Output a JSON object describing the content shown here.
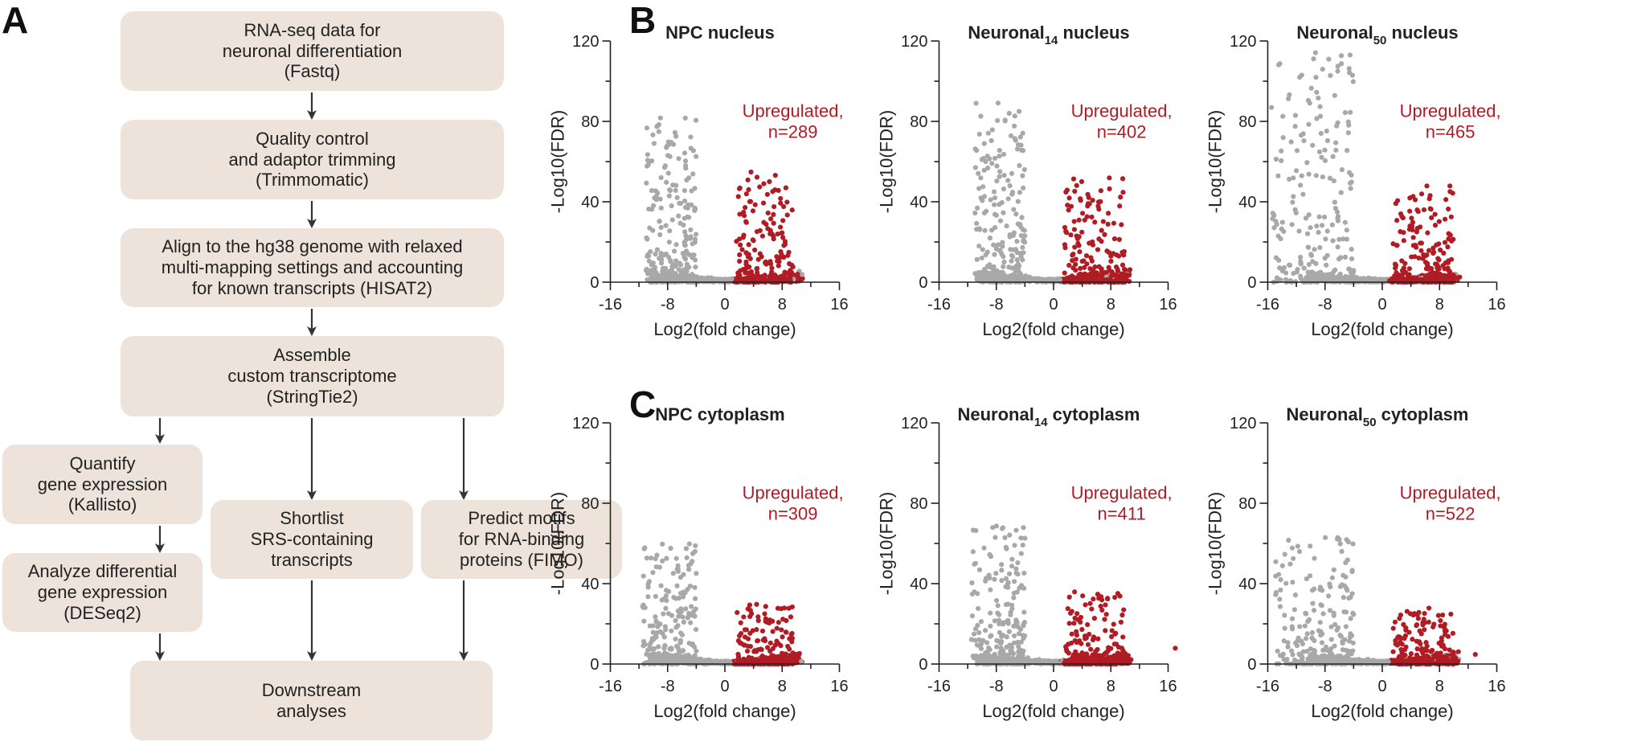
{
  "panels": {
    "a": "A",
    "b": "B",
    "c": "C"
  },
  "flowchart": {
    "box1": [
      "RNA-seq data for",
      "neuronal differentiation",
      "(Fastq)"
    ],
    "box2": [
      "Quality control",
      "and adaptor trimming",
      "(Trimmomatic)"
    ],
    "box3": [
      "Align to the hg38 genome with relaxed",
      "multi-mapping settings and accounting",
      "for known transcripts (HISAT2)"
    ],
    "box4": [
      "Assemble",
      "custom transcriptome",
      "(StringTie2)"
    ],
    "box5": [
      "Quantify",
      "gene expression",
      "(Kallisto)"
    ],
    "box6": [
      "Analyze differential",
      "gene expression",
      "(DESeq2)"
    ],
    "box7": [
      "Shortlist",
      "SRS-containing",
      "transcripts"
    ],
    "box8": [
      "Predict motifs",
      "for RNA-binding",
      "proteins (FIMO)"
    ],
    "box9": [
      "Downstream",
      "analyses"
    ]
  },
  "colors": {
    "box_fill": "#ede3da",
    "upregulated": "#b01c24",
    "other_points": "#a8a8a8",
    "text": "#222222"
  },
  "axes": {
    "xlabel": "Log2(fold change)",
    "ylabel": "-Log10(FDR)"
  },
  "chart_data": [
    {
      "type": "scatter",
      "panel": "B",
      "title_main": "NPC nucleus",
      "title_sub": "",
      "title_suffix": "",
      "annotation": [
        "Upregulated,",
        "n=289"
      ],
      "up_count": 289,
      "xlim": [
        -16,
        16
      ],
      "ylim": [
        0,
        120
      ],
      "xticks": [
        -16,
        -8,
        0,
        8,
        16
      ],
      "yticks": [
        0,
        40,
        80,
        120
      ],
      "xlabel": "Log2(fold change)",
      "ylabel": "-Log10(FDR)",
      "seed": 11,
      "maxY": 82,
      "upMaxY": 55,
      "maxX": 9.5,
      "minX": -11
    },
    {
      "type": "scatter",
      "panel": "B",
      "title_main": "Neuronal",
      "title_sub": "14",
      "title_suffix": " nucleus",
      "annotation": [
        "Upregulated,",
        "n=402"
      ],
      "up_count": 402,
      "xlim": [
        -16,
        16
      ],
      "ylim": [
        0,
        120
      ],
      "xticks": [
        -16,
        -8,
        0,
        8,
        16
      ],
      "yticks": [
        0,
        40,
        80,
        120
      ],
      "xlabel": "Log2(fold change)",
      "ylabel": "-Log10(FDR)",
      "seed": 23,
      "maxY": 90,
      "upMaxY": 52,
      "maxX": 10,
      "minX": -11
    },
    {
      "type": "scatter",
      "panel": "B",
      "title_main": "Neuronal",
      "title_sub": "50",
      "title_suffix": " nucleus",
      "annotation": [
        "Upregulated,",
        "n=465"
      ],
      "up_count": 465,
      "xlim": [
        -16,
        16
      ],
      "ylim": [
        0,
        120
      ],
      "xticks": [
        -16,
        -8,
        0,
        8,
        16
      ],
      "yticks": [
        0,
        40,
        80,
        120
      ],
      "xlabel": "Log2(fold change)",
      "ylabel": "-Log10(FDR)",
      "seed": 37,
      "maxY": 116,
      "upMaxY": 49,
      "maxX": 10,
      "minX": -15.5
    },
    {
      "type": "scatter",
      "panel": "C",
      "title_main": "NPC cytoplasm",
      "title_sub": "",
      "title_suffix": "",
      "annotation": [
        "Upregulated,",
        "n=309"
      ],
      "up_count": 309,
      "xlim": [
        -16,
        16
      ],
      "ylim": [
        0,
        120
      ],
      "xticks": [
        -16,
        -8,
        0,
        8,
        16
      ],
      "yticks": [
        0,
        40,
        80,
        120
      ],
      "xlabel": "Log2(fold change)",
      "ylabel": "-Log10(FDR)",
      "seed": 41,
      "maxY": 60,
      "upMaxY": 30,
      "maxX": 9.5,
      "minX": -11.5
    },
    {
      "type": "scatter",
      "panel": "C",
      "title_main": "Neuronal",
      "title_sub": "14",
      "title_suffix": " cytoplasm",
      "annotation": [
        "Upregulated,",
        "n=411"
      ],
      "up_count": 411,
      "xlim": [
        -16,
        16
      ],
      "ylim": [
        0,
        120
      ],
      "xticks": [
        -16,
        -8,
        0,
        8,
        16
      ],
      "yticks": [
        0,
        40,
        80,
        120
      ],
      "xlabel": "Log2(fold change)",
      "ylabel": "-Log10(FDR)",
      "seed": 53,
      "maxY": 69,
      "upMaxY": 36,
      "maxX": 17,
      "minX": -11.5
    },
    {
      "type": "scatter",
      "panel": "C",
      "title_main": "Neuronal",
      "title_sub": "50",
      "title_suffix": " cytoplasm",
      "annotation": [
        "Upregulated,",
        "n=522"
      ],
      "up_count": 522,
      "xlim": [
        -16,
        16
      ],
      "ylim": [
        0,
        120
      ],
      "xticks": [
        -16,
        -8,
        0,
        8,
        16
      ],
      "yticks": [
        0,
        40,
        80,
        120
      ],
      "xlabel": "Log2(fold change)",
      "ylabel": "-Log10(FDR)",
      "seed": 67,
      "maxY": 63,
      "upMaxY": 28,
      "maxX": 13,
      "minX": -15
    }
  ]
}
